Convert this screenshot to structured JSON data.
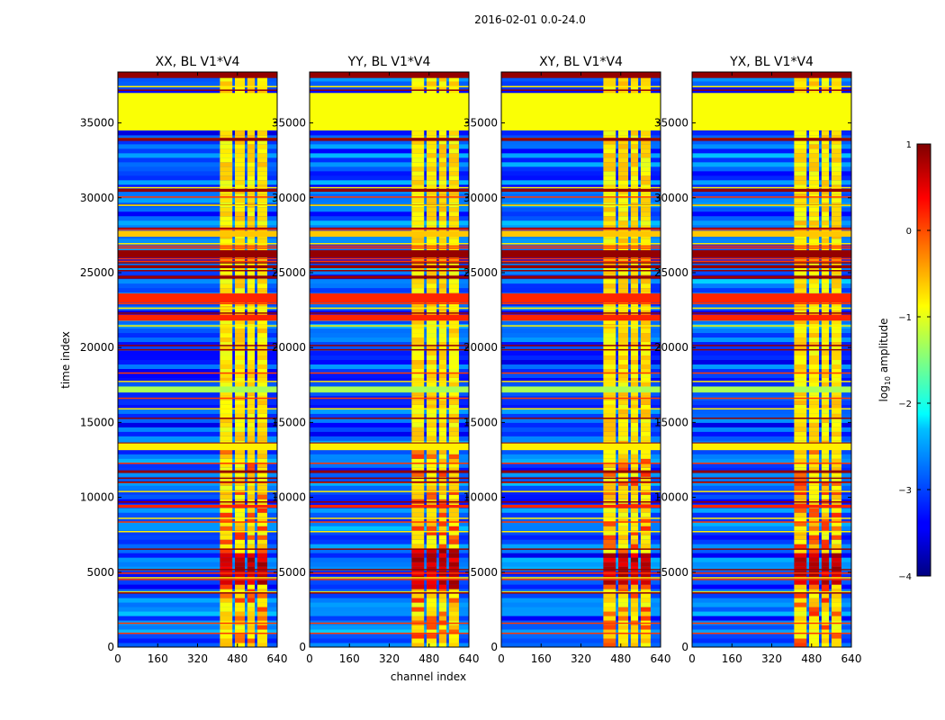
{
  "figure": {
    "suptitle": "2016-02-01 0.0-24.0"
  },
  "chart_data": {
    "type": "heatmap",
    "colormap": "jet",
    "xlabel": "channel index",
    "ylabel": "time index",
    "xlim": [
      0,
      640
    ],
    "ylim": [
      0,
      38400
    ],
    "xticks": [
      0,
      160,
      320,
      480,
      640
    ],
    "yticks": [
      0,
      5000,
      10000,
      15000,
      20000,
      25000,
      30000,
      35000
    ],
    "panels": [
      {
        "title": "XX, BL V1*V4",
        "pol": "XX",
        "high_amp_band": [
          4000,
          6500
        ],
        "show_ylabel": true
      },
      {
        "title": "YY, BL V1*V4",
        "pol": "YY",
        "high_amp_band": [
          3800,
          6600
        ],
        "show_ylabel": false
      },
      {
        "title": "XY, BL V1*V4",
        "pol": "XY",
        "high_amp_band": [
          4200,
          6500
        ],
        "show_ylabel": false
      },
      {
        "title": "YX, BL V1*V4",
        "pol": "YX",
        "high_amp_band": [
          4200,
          6500
        ],
        "show_ylabel": false
      }
    ],
    "bright_channel_band": [
      410,
      600
    ],
    "bright_subbands": [
      [
        410,
        460
      ],
      [
        470,
        510
      ],
      [
        520,
        550
      ],
      [
        560,
        600
      ]
    ],
    "flagged_time_bands": [
      {
        "range": [
          34500,
          37000
        ],
        "log_amp": -0.9
      },
      {
        "range": [
          23000,
          23600
        ],
        "log_amp": 0.2
      },
      {
        "range": [
          21800,
          22200
        ],
        "log_amp": 0.2
      },
      {
        "range": [
          26000,
          26500
        ],
        "log_amp": 0.9
      },
      {
        "range": [
          25300,
          25500
        ],
        "log_amp": 0.9
      },
      {
        "range": [
          24600,
          24800
        ],
        "log_amp": 0.9
      },
      {
        "range": [
          27400,
          27800
        ],
        "log_amp": -0.6
      },
      {
        "range": [
          17000,
          17400
        ],
        "log_amp": -1.3
      },
      {
        "range": [
          13200,
          13600
        ],
        "log_amp": -0.8
      },
      {
        "range": [
          9300,
          9500
        ],
        "log_amp": 0.2
      },
      {
        "range": [
          30400,
          30600
        ],
        "log_amp": 0.9
      },
      {
        "range": [
          33800,
          34000
        ],
        "log_amp": 0.9
      },
      {
        "range": [
          38000,
          38400
        ],
        "log_amp": 0.9
      }
    ],
    "colorbar": {
      "label": "log",
      "label_sub": "10",
      "label_rest": " amplitude",
      "range": [
        -4,
        1
      ],
      "ticks": [
        1,
        0,
        -1,
        -2,
        -3,
        -4
      ],
      "tick_labels": [
        "1",
        "0",
        "−1",
        "−2",
        "−3",
        "−4"
      ]
    }
  }
}
